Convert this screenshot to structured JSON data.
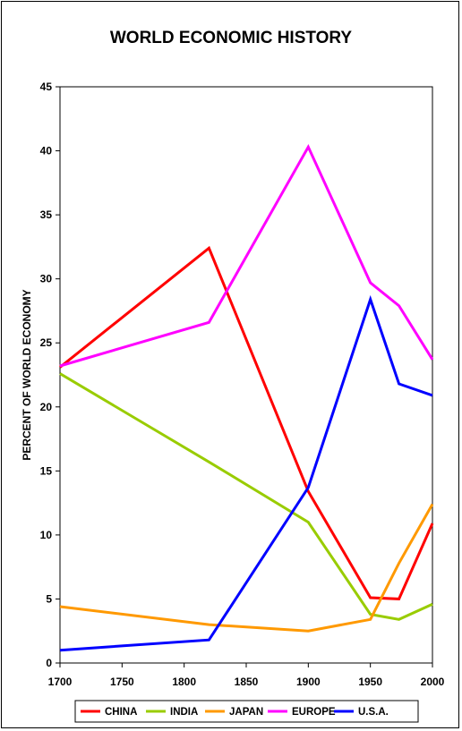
{
  "chart_data": {
    "type": "line",
    "title": "WORLD ECONOMIC HISTORY",
    "xlabel": "",
    "ylabel": "PERCENT OF WORLD ECONOMY",
    "xlim": [
      1700,
      2000
    ],
    "ylim": [
      0,
      45
    ],
    "xticks": [
      1700,
      1750,
      1800,
      1850,
      1900,
      1950,
      2000
    ],
    "yticks": [
      0,
      5,
      10,
      15,
      20,
      25,
      30,
      35,
      40,
      45
    ],
    "grid": false,
    "legend_position": "bottom",
    "series": [
      {
        "name": "CHINA",
        "color": "#ff0000",
        "x": [
          1700,
          1820,
          1900,
          1950,
          1973,
          2000
        ],
        "y": [
          23.1,
          32.4,
          13.4,
          5.1,
          5.0,
          10.9
        ]
      },
      {
        "name": "INDIA",
        "color": "#99cc00",
        "x": [
          1700,
          1820,
          1900,
          1950,
          1973,
          2000
        ],
        "y": [
          22.6,
          15.7,
          11.0,
          3.8,
          3.4,
          4.6
        ]
      },
      {
        "name": "JAPAN",
        "color": "#ff9900",
        "x": [
          1700,
          1820,
          1900,
          1950,
          1973,
          2000
        ],
        "y": [
          4.4,
          3.0,
          2.5,
          3.4,
          7.8,
          12.4
        ]
      },
      {
        "name": "EUROPE",
        "color": "#ff00ff",
        "x": [
          1700,
          1820,
          1900,
          1950,
          1973,
          2000
        ],
        "y": [
          23.2,
          26.6,
          40.3,
          29.7,
          27.9,
          23.7
        ]
      },
      {
        "name": "U.S.A.",
        "color": "#0000ff",
        "x": [
          1700,
          1820,
          1900,
          1950,
          1973,
          2000
        ],
        "y": [
          1.0,
          1.8,
          13.7,
          28.4,
          21.8,
          20.9
        ]
      }
    ]
  }
}
